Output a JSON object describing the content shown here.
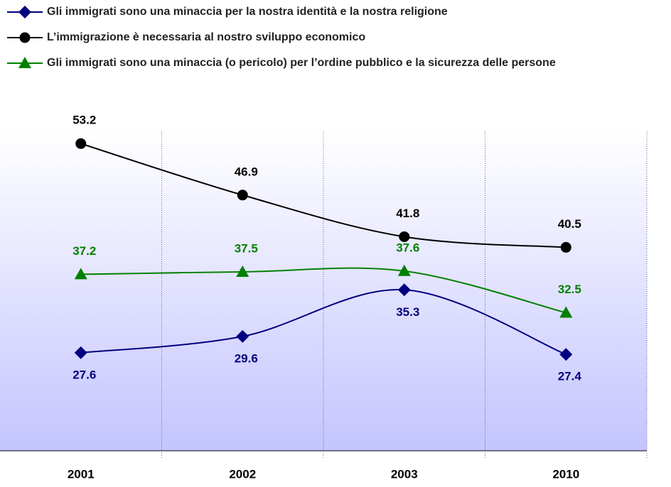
{
  "chart_data": {
    "type": "line",
    "categories": [
      "2001",
      "2002",
      "2003",
      "2010"
    ],
    "series": [
      {
        "name": "Gli immigrati sono una minaccia per la nostra identità e la nostra religione",
        "color": "#000080",
        "marker": "diamond",
        "values": [
          27.6,
          29.6,
          35.3,
          27.4
        ]
      },
      {
        "name": "L’immigrazione è necessaria al nostro sviluppo economico",
        "color": "#000000",
        "marker": "circle",
        "values": [
          53.2,
          46.9,
          41.8,
          40.5
        ]
      },
      {
        "name": "Gli immigrati sono una minaccia (o pericolo) per l’ordine pubblico e la sicurezza delle persone",
        "color": "#008000",
        "marker": "triangle",
        "values": [
          37.2,
          37.5,
          37.6,
          32.5
        ]
      }
    ],
    "ylim": [
      15.6,
      54.7
    ]
  }
}
